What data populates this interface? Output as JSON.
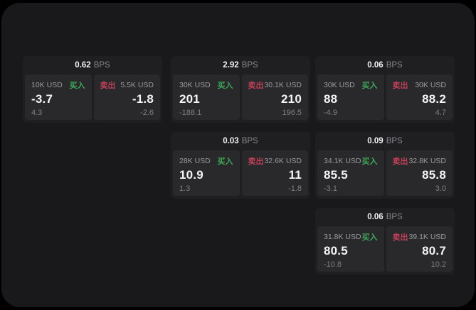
{
  "labels": {
    "bps": "BPS",
    "buy": "买入",
    "sell": "卖出"
  },
  "colors": {
    "buy_accent": "#3fa65a",
    "sell_accent": "#bf3f58",
    "surface": "#19191b",
    "card": "#1f1f21",
    "panel": "#29292b"
  },
  "cards": [
    {
      "bps": "0.62",
      "buy": {
        "size": "10K USD",
        "price": "-3.7",
        "delta": "4.3"
      },
      "sell": {
        "size": "5.5K USD",
        "price": "-1.8",
        "delta": "-2.6"
      }
    },
    {
      "bps": "2.92",
      "buy": {
        "size": "30K USD",
        "price": "201",
        "delta": "-188.1"
      },
      "sell": {
        "size": "30.1K USD",
        "price": "210",
        "delta": "196.5"
      }
    },
    {
      "bps": "0.06",
      "buy": {
        "size": "30K USD",
        "price": "88",
        "delta": "-4.9"
      },
      "sell": {
        "size": "30K USD",
        "price": "88.2",
        "delta": "4.7"
      }
    },
    {
      "bps": "0.03",
      "buy": {
        "size": "28K USD",
        "price": "10.9",
        "delta": "1.3"
      },
      "sell": {
        "size": "32.6K USD",
        "price": "11",
        "delta": "-1.8"
      }
    },
    {
      "bps": "0.09",
      "buy": {
        "size": "34.1K USD",
        "price": "85.5",
        "delta": "-3.1"
      },
      "sell": {
        "size": "32.8K USD",
        "price": "85.8",
        "delta": "3.0"
      }
    },
    {
      "bps": "0.06",
      "buy": {
        "size": "31.8K USD",
        "price": "80.5",
        "delta": "-10.8"
      },
      "sell": {
        "size": "39.1K USD",
        "price": "80.7",
        "delta": "10.2"
      }
    }
  ]
}
